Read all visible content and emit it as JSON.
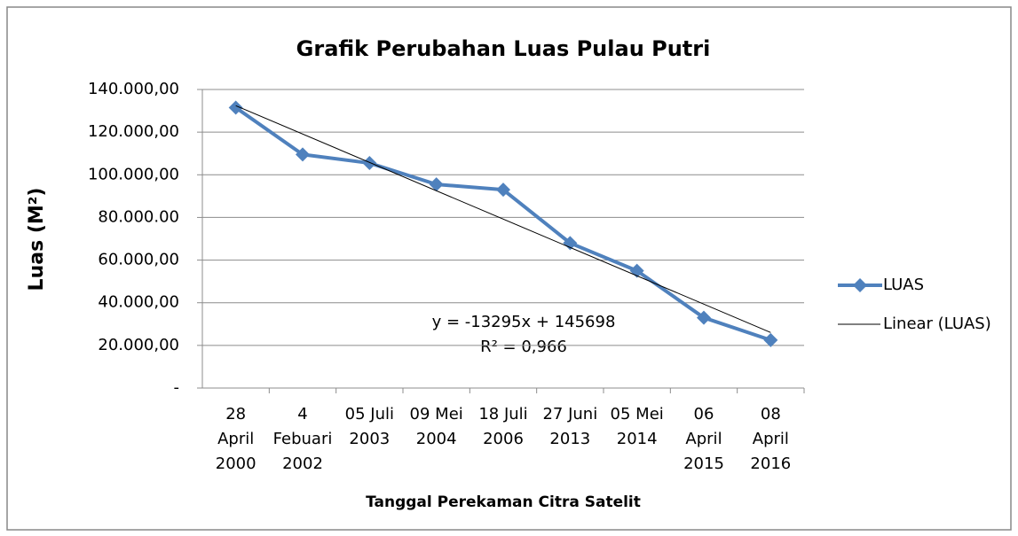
{
  "chart_data": {
    "type": "line",
    "title": "Grafik Perubahan Luas Pulau Putri",
    "xlabel": "Tanggal Perekaman Citra Satelit",
    "ylabel": "Luas  (M²)",
    "categories": [
      [
        "28",
        "April",
        "2000"
      ],
      [
        "4",
        "Febuari",
        "2002"
      ],
      [
        "05 Juli",
        "2003"
      ],
      [
        "09 Mei",
        "2004"
      ],
      [
        "18 Juli",
        "2006"
      ],
      [
        "27 Juni",
        "2013"
      ],
      [
        "05 Mei",
        "2014"
      ],
      [
        "06",
        "April",
        "2015"
      ],
      [
        "08",
        "April",
        "2016"
      ]
    ],
    "series": [
      {
        "name": "LUAS",
        "color": "#4f81bd",
        "values": [
          131500,
          109500,
          105500,
          95500,
          93000,
          68000,
          55000,
          33000,
          22500
        ]
      }
    ],
    "trendline": {
      "name": "Linear (LUAS)",
      "color": "#000000",
      "slope": -13295,
      "intercept": 145698
    },
    "annotations": [
      "y = -13295x + 145698",
      "R² = 0,966"
    ],
    "ylim": [
      0,
      140000
    ],
    "yticks": [
      {
        "value": 0,
        "label": "-"
      },
      {
        "value": 20000,
        "label": "20.000,00"
      },
      {
        "value": 40000,
        "label": "40.000,00"
      },
      {
        "value": 60000,
        "label": "60.000,00"
      },
      {
        "value": 80000,
        "label": "80.000.00"
      },
      {
        "value": 100000,
        "label": "100.000,00"
      },
      {
        "value": 120000,
        "label": "120.000,00"
      },
      {
        "value": 140000,
        "label": "140.000,00"
      }
    ],
    "grid": true,
    "legend": "right"
  }
}
